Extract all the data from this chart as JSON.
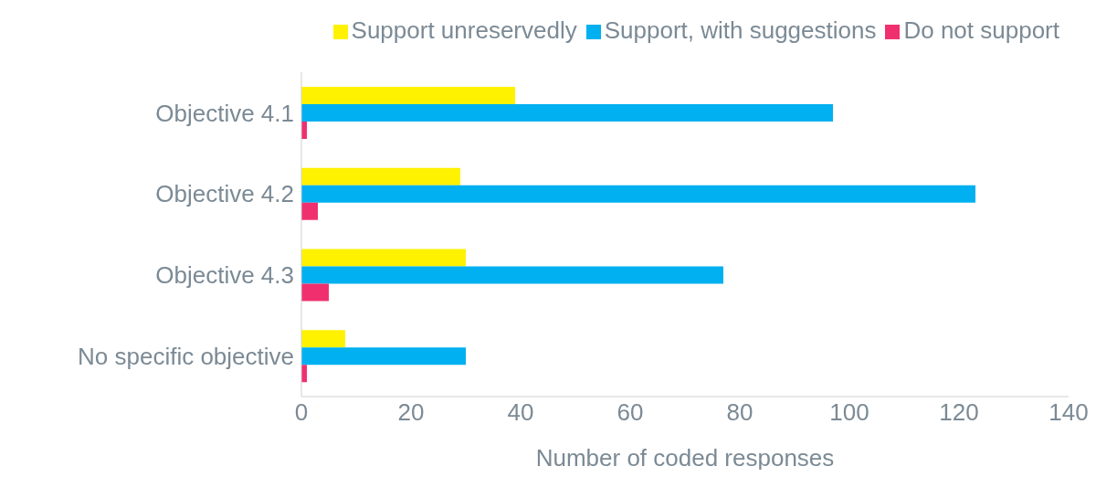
{
  "chart_data": {
    "type": "bar",
    "orientation": "horizontal",
    "xlabel": "Number of coded responses",
    "categories": [
      "Objective 4.1",
      "Objective 4.2",
      "Objective 4.3",
      "No specific objective"
    ],
    "series": [
      {
        "name": "Support unreservedly",
        "color": "#fff200",
        "values": [
          39,
          29,
          30,
          8
        ]
      },
      {
        "name": "Support, with suggestions",
        "color": "#00b0f0",
        "values": [
          97,
          123,
          77,
          30
        ]
      },
      {
        "name": "Do not support",
        "color": "#f0306e",
        "values": [
          1,
          3,
          5,
          1
        ]
      }
    ],
    "xlim": [
      0,
      140
    ],
    "xticks": [
      0,
      20,
      40,
      60,
      80,
      100,
      120,
      140
    ],
    "grid": false,
    "legend": "top right"
  }
}
